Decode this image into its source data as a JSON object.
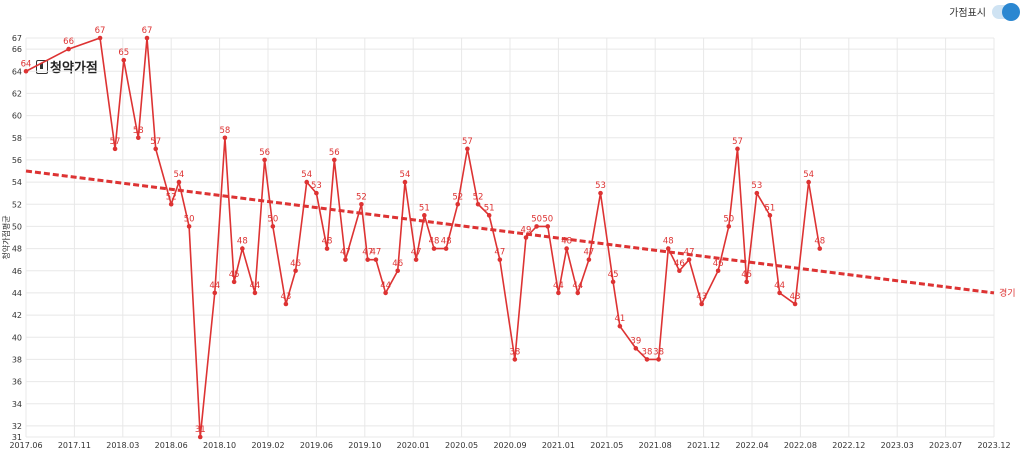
{
  "toggle": {
    "label": "가점표시",
    "on": true
  },
  "brand": {
    "name": "청약가점",
    "icon": "building-logo-icon"
  },
  "colors": {
    "series": "#dd3333",
    "trend": "#dd3333",
    "grid": "#e8e8e8",
    "axis_text": "#333333"
  },
  "chart_data": {
    "type": "line",
    "ylabel": "청약가점평균",
    "ylim": [
      31,
      67
    ],
    "yticks": [
      31,
      32,
      34,
      36,
      38,
      40,
      42,
      44,
      46,
      48,
      50,
      52,
      54,
      56,
      58,
      60,
      62,
      64,
      66,
      67
    ],
    "xticks": [
      "2017.06",
      "2017.11",
      "2018.03",
      "2018.06",
      "2018.10",
      "2019.02",
      "2019.06",
      "2019.10",
      "2020.01",
      "2020.05",
      "2020.09",
      "2021.01",
      "2021.05",
      "2021.08",
      "2021.12",
      "2022.04",
      "2022.08",
      "2022.12",
      "2023.03",
      "2023.07",
      "2023.12"
    ],
    "grid": true,
    "series": [
      {
        "values": [
          64,
          66,
          67,
          57,
          65,
          58,
          67,
          57,
          52,
          54,
          50,
          31,
          44,
          58,
          45,
          48,
          44,
          56,
          50,
          43,
          46,
          54,
          53,
          48,
          56,
          47,
          52,
          47,
          47,
          44,
          46,
          54,
          47,
          51,
          48,
          48,
          52,
          57,
          52,
          51,
          47,
          38,
          49,
          50,
          50,
          44,
          48,
          44,
          47,
          53,
          45,
          41,
          39,
          38,
          38,
          48,
          46,
          47,
          43,
          46,
          50,
          57,
          45,
          53,
          51,
          44,
          43,
          54,
          48
        ],
        "x_index": [
          0,
          0.88,
          1.53,
          1.84,
          2.02,
          2.32,
          2.5,
          2.68,
          3.0,
          3.16,
          3.37,
          3.6,
          3.9,
          4.11,
          4.3,
          4.47,
          4.73,
          4.93,
          5.1,
          5.37,
          5.57,
          5.8,
          6.0,
          6.22,
          6.37,
          6.6,
          6.93,
          7.06,
          7.23,
          7.43,
          7.68,
          7.83,
          8.06,
          8.23,
          8.43,
          8.68,
          8.92,
          9.12,
          9.34,
          9.57,
          9.79,
          10.1,
          10.33,
          10.55,
          10.78,
          11.0,
          11.17,
          11.4,
          11.63,
          11.87,
          12.13,
          12.27,
          12.6,
          12.83,
          13.07,
          13.27,
          13.5,
          13.7,
          13.96,
          14.3,
          14.52,
          14.7,
          14.89,
          15.1,
          15.37,
          15.57,
          15.89,
          16.17,
          16.4
        ],
        "labels": [
          "64",
          "66",
          "67",
          "57",
          "65",
          "58",
          "67",
          "57",
          "52",
          "54",
          "50",
          "31",
          "44",
          "58",
          "45",
          "48",
          "44",
          "56",
          "50",
          "43",
          "46",
          "54",
          "53",
          "48",
          "56",
          "47",
          "52",
          "47",
          "47",
          "44",
          "46",
          "54",
          "47",
          "51",
          "48",
          "48",
          "52",
          "57",
          "52",
          "51",
          "47",
          "38",
          "49",
          "50",
          "50",
          "44",
          "48",
          "44",
          "47",
          "53",
          "45",
          "41",
          "39",
          "38",
          "38",
          "48",
          "46",
          "47",
          "43",
          "46",
          "50",
          "57",
          "45",
          "53",
          "51",
          "44",
          "43",
          "54",
          "48"
        ]
      }
    ],
    "trend": {
      "label": "경기",
      "start": 55,
      "end": 44,
      "style": "dashed"
    }
  }
}
